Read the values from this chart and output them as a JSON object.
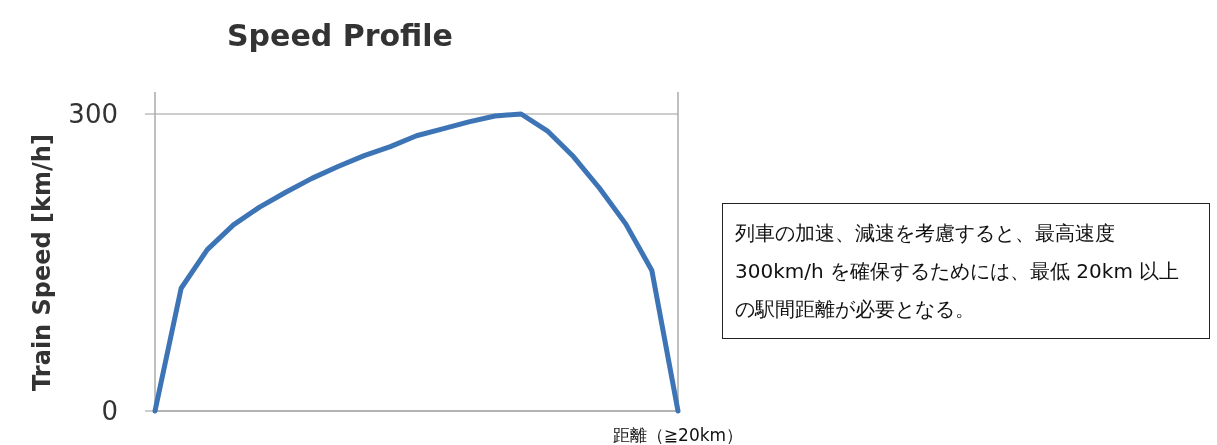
{
  "chart_data": {
    "type": "line",
    "title": "Speed Profile",
    "xlabel": "距離（≧20km）",
    "ylabel": "Train Speed [km/h]",
    "categories": [
      null,
      null,
      null,
      null,
      null,
      null,
      null,
      null,
      null,
      null,
      null,
      null,
      null,
      null,
      null,
      null,
      null,
      null,
      null,
      null,
      null
    ],
    "series": [
      {
        "color": "#3d74b6",
        "values": [
          0,
          124,
          163,
          188,
          206,
          221,
          235,
          247,
          258,
          267,
          278,
          285,
          292,
          298,
          300,
          283,
          257,
          225,
          189,
          142,
          0
        ]
      }
    ],
    "ylim": [
      0,
      300
    ],
    "yticks": [
      0,
      300
    ],
    "grid": "y",
    "annotations": [
      "列車の加速、減速を考慮すると、最高速度 300km/h を確保するためには、最低 20km 以上の駅間距離が必要となる。"
    ]
  }
}
